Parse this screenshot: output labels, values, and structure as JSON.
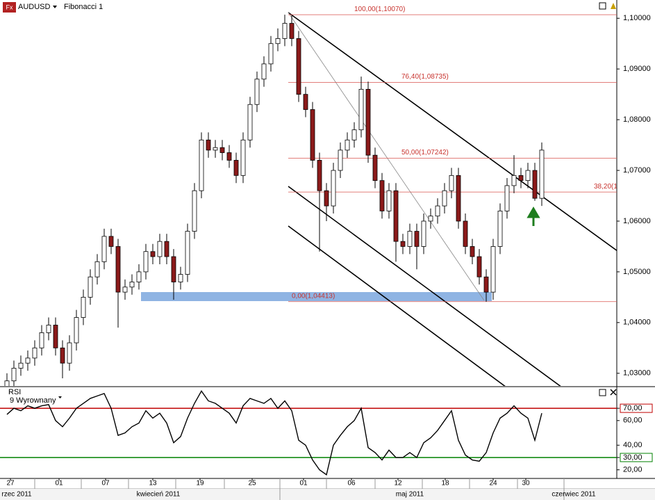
{
  "header": {
    "symbol": "AUDUSD",
    "template": "Fibonacci 1"
  },
  "chart_data": {
    "type": "candlestick",
    "xlim": [
      -1,
      87.8
    ],
    "ylim": [
      1.0275,
      1.1036
    ],
    "yticks": [
      {
        "value": 1.1,
        "label": "1,10000"
      },
      {
        "value": 1.09,
        "label": "1,09000"
      },
      {
        "value": 1.08,
        "label": "1,08000"
      },
      {
        "value": 1.07,
        "label": "1,07000"
      },
      {
        "value": 1.06,
        "label": "1,06000"
      },
      {
        "value": 1.05,
        "label": "1,05000"
      },
      {
        "value": 1.04,
        "label": "1,04000"
      },
      {
        "value": 1.03,
        "label": "1,03000"
      }
    ],
    "xticks": [
      {
        "value": 0.5,
        "label": "27"
      },
      {
        "value": 7.5,
        "label": "01"
      },
      {
        "value": 14.2,
        "label": "07"
      },
      {
        "value": 21,
        "label": "13"
      },
      {
        "value": 27.8,
        "label": "19"
      },
      {
        "value": 35.3,
        "label": "25"
      },
      {
        "value": 42.7,
        "label": "01"
      },
      {
        "value": 49.6,
        "label": "06"
      },
      {
        "value": 56.3,
        "label": "12"
      },
      {
        "value": 63.1,
        "label": "18"
      },
      {
        "value": 70,
        "label": "24"
      },
      {
        "value": 74.7,
        "label": "30"
      }
    ],
    "months": [
      {
        "value": 1.4,
        "label": "rzec 2011"
      },
      {
        "value": 21.8,
        "label": "kwiecień 2011"
      },
      {
        "value": 58,
        "label": "maj 2011"
      },
      {
        "value": 81.6,
        "label": "czerwiec 2011"
      }
    ],
    "up_color": "#ffffff",
    "down_color": "#8b1a1a",
    "open": [
      1.027,
      1.0285,
      1.031,
      1.032,
      1.033,
      1.035,
      1.038,
      1.0395,
      1.035,
      1.032,
      1.036,
      1.041,
      1.045,
      1.049,
      1.052,
      1.057,
      1.055,
      1.046,
      1.047,
      1.048,
      1.05,
      1.054,
      1.053,
      1.056,
      1.053,
      1.048,
      1.0495,
      1.058,
      1.066,
      1.076,
      1.074,
      1.0745,
      1.0735,
      1.072,
      1.069,
      1.076,
      1.083,
      1.088,
      1.091,
      1.095,
      1.096,
      1.099,
      1.096,
      1.085,
      1.082,
      1.072,
      1.066,
      1.063,
      1.07,
      1.074,
      1.076,
      1.078,
      1.086,
      1.073,
      1.068,
      1.062,
      1.066,
      1.056,
      1.055,
      1.058,
      1.055,
      1.06,
      1.061,
      1.063,
      1.066,
      1.069,
      1.06,
      1.055,
      1.053,
      1.049,
      1.046,
      1.055,
      1.062,
      1.067,
      1.069,
      1.068,
      1.07,
      1.0645
    ],
    "high": [
      1.03,
      1.0325,
      1.0335,
      1.0345,
      1.0365,
      1.0395,
      1.041,
      1.041,
      1.0365,
      1.0375,
      1.0425,
      1.0465,
      1.0505,
      1.0535,
      1.0585,
      1.0585,
      1.0565,
      1.0485,
      1.0495,
      1.0515,
      1.0555,
      1.0555,
      1.0575,
      1.0575,
      1.0545,
      1.051,
      1.0595,
      1.0675,
      1.0775,
      1.0775,
      1.076,
      1.076,
      1.075,
      1.0735,
      1.0775,
      1.0845,
      1.0895,
      1.0925,
      1.0965,
      1.098,
      1.1007,
      1.1005,
      1.0975,
      1.0865,
      1.0835,
      1.0735,
      1.0675,
      1.0715,
      1.0755,
      1.0775,
      1.0795,
      1.0885,
      1.0875,
      1.0745,
      1.0695,
      1.0675,
      1.0675,
      1.0575,
      1.0595,
      1.0595,
      1.0615,
      1.0625,
      1.0645,
      1.0675,
      1.0705,
      1.0705,
      1.0615,
      1.0565,
      1.0545,
      1.0505,
      1.0565,
      1.0635,
      1.0685,
      1.073,
      1.0705,
      1.0715,
      1.0715,
      1.0755
    ],
    "low": [
      1.0255,
      1.027,
      1.0295,
      1.0305,
      1.0315,
      1.0335,
      1.0365,
      1.0335,
      1.029,
      1.0305,
      1.0345,
      1.0395,
      1.0435,
      1.0475,
      1.0505,
      1.0535,
      1.039,
      1.0445,
      1.0455,
      1.0465,
      1.0485,
      1.0515,
      1.0515,
      1.0515,
      1.0445,
      1.0465,
      1.048,
      1.0565,
      1.0645,
      1.0725,
      1.0725,
      1.072,
      1.0705,
      1.0675,
      1.0675,
      1.0745,
      1.0815,
      1.0865,
      1.0895,
      1.0935,
      1.0945,
      1.0945,
      1.0835,
      1.0805,
      1.0705,
      1.054,
      1.06,
      1.0615,
      1.0685,
      1.0725,
      1.0745,
      1.0765,
      1.0715,
      1.0665,
      1.0605,
      1.0605,
      1.052,
      1.0535,
      1.0535,
      1.0505,
      1.0535,
      1.0585,
      1.0595,
      1.0615,
      1.0645,
      1.0585,
      1.0535,
      1.0515,
      1.0475,
      1.0441,
      1.0445,
      1.0535,
      1.0605,
      1.0655,
      1.0665,
      1.0665,
      1.064,
      1.063
    ],
    "close": [
      1.0285,
      1.031,
      1.032,
      1.033,
      1.035,
      1.038,
      1.0395,
      1.035,
      1.032,
      1.036,
      1.041,
      1.045,
      1.049,
      1.052,
      1.057,
      1.055,
      1.046,
      1.047,
      1.048,
      1.05,
      1.054,
      1.053,
      1.056,
      1.053,
      1.048,
      1.0495,
      1.058,
      1.066,
      1.076,
      1.074,
      1.0745,
      1.0735,
      1.072,
      1.069,
      1.076,
      1.083,
      1.088,
      1.091,
      1.095,
      1.096,
      1.099,
      1.096,
      1.085,
      1.082,
      1.072,
      1.066,
      1.063,
      1.07,
      1.074,
      1.076,
      1.078,
      1.086,
      1.073,
      1.068,
      1.062,
      1.066,
      1.056,
      1.055,
      1.058,
      1.055,
      1.06,
      1.061,
      1.063,
      1.066,
      1.069,
      1.06,
      1.055,
      1.053,
      1.049,
      1.046,
      1.055,
      1.062,
      1.067,
      1.069,
      1.068,
      1.07,
      1.0645,
      1.074
    ],
    "fibonacci": {
      "color": "#d9534f",
      "levels": [
        {
          "label": "100,00(1,10070)",
          "price": 1.1007
        },
        {
          "label": "76,40(1,08735)",
          "price": 1.08735
        },
        {
          "label": "50,00(1,07242)",
          "price": 1.07242
        },
        {
          "label": "38,20(1",
          "price": 1.06574
        },
        {
          "label": "0,00(1,04413)",
          "price": 1.04413
        }
      ]
    },
    "rsi": {
      "title": "RSI",
      "subtitle": "9 Wyrownany",
      "color": "#000000",
      "ylim": [
        13,
        87
      ],
      "yticks": [
        {
          "value": 70,
          "label": "70,00"
        },
        {
          "value": 60,
          "label": "60,00"
        },
        {
          "value": 40,
          "label": "40,00"
        },
        {
          "value": 30,
          "label": "30,00"
        },
        {
          "value": 20,
          "label": "20,00"
        }
      ],
      "upper": {
        "value": 70,
        "color": "#c00000"
      },
      "lower": {
        "value": 30,
        "color": "#008000"
      },
      "values": [
        65,
        70,
        68,
        72,
        70,
        72,
        73,
        60,
        55,
        62,
        70,
        74,
        78,
        80,
        82,
        70,
        48,
        50,
        55,
        58,
        68,
        62,
        66,
        58,
        42,
        47,
        62,
        74,
        84,
        76,
        74,
        70,
        66,
        58,
        72,
        78,
        76,
        74,
        78,
        70,
        76,
        68,
        44,
        40,
        28,
        20,
        16,
        40,
        48,
        55,
        60,
        70,
        38,
        34,
        28,
        36,
        30,
        30,
        34,
        30,
        42,
        46,
        52,
        60,
        68,
        44,
        32,
        28,
        27,
        34,
        50,
        62,
        66,
        72,
        66,
        62,
        44,
        66
      ]
    }
  }
}
